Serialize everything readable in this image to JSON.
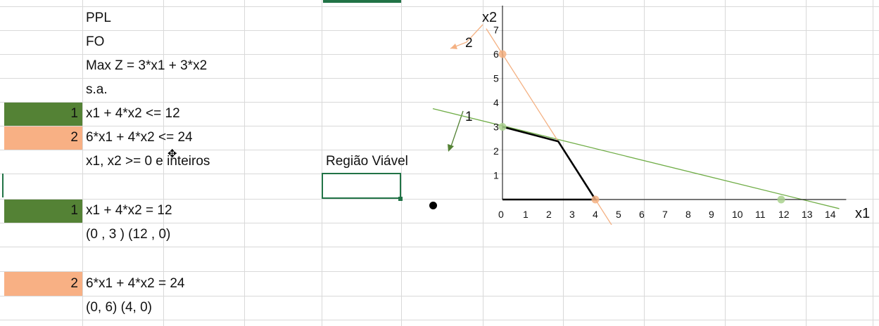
{
  "sheet": {
    "cells": {
      "ppl": "PPL",
      "fo": "FO",
      "objective": "Max Z = 3*x1 + 3*x2",
      "sa": "s.a.",
      "c1_num": "1",
      "c1_expr": "x1 + 4*x2 <= 12",
      "c2_num": "2",
      "c2_expr": "6*x1 + 4*x2 <= 24",
      "nonneg": "x1, x2 >= 0 e inteiros",
      "regiao": "Região Viável",
      "eq1_num": "1",
      "eq1_expr": "x1 + 4*x2 = 12",
      "eq1_points": "(0 , 3 ) (12 , 0)",
      "eq2_num": "2",
      "eq2_expr": "6*x1 + 4*x2 = 24",
      "eq2_points": "(0, 6) (4, 0)",
      "selected_cell_value": ""
    },
    "colors": {
      "green_fill": "#548235",
      "orange_fill": "#f8b084",
      "grid": "#d9d9d9",
      "selection": "#217346"
    }
  },
  "chart_data": {
    "type": "line",
    "xlabel": "x1",
    "ylabel": "x2",
    "xlim": [
      0,
      14
    ],
    "ylim": [
      0,
      7
    ],
    "x_ticks": [
      0,
      1,
      2,
      3,
      4,
      5,
      6,
      7,
      8,
      9,
      10,
      11,
      12,
      13,
      14
    ],
    "y_ticks": [
      1,
      2,
      3,
      4,
      5,
      6,
      7
    ],
    "constraint_labels": [
      "1",
      "2"
    ],
    "series": [
      {
        "points": [
          [
            0,
            3
          ],
          [
            12,
            0
          ]
        ],
        "color": "#70ad47"
      },
      {
        "points": [
          [
            0,
            6
          ],
          [
            4,
            0
          ]
        ],
        "color": "#f4b183"
      },
      {
        "points": [
          [
            0,
            3
          ],
          [
            2.4,
            2.4
          ],
          [
            4,
            0
          ],
          [
            0,
            0
          ]
        ],
        "color": "#000000"
      }
    ],
    "marked_points": [
      {
        "x": 0,
        "y": 3,
        "color": "#a9d18e"
      },
      {
        "x": 12,
        "y": 0,
        "color": "#a9d18e"
      },
      {
        "x": 0,
        "y": 6,
        "color": "#f4b183"
      },
      {
        "x": 4,
        "y": 0,
        "color": "#f4b183"
      }
    ]
  }
}
